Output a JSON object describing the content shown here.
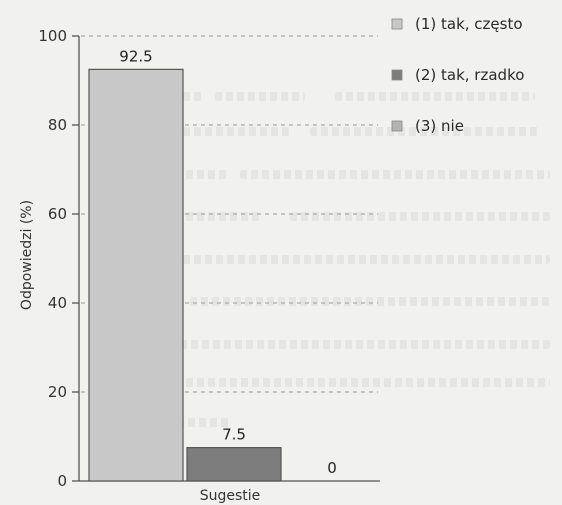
{
  "chart_data": {
    "type": "bar",
    "categories": [
      "Sugestie"
    ],
    "series": [
      {
        "name": "(1) tak, często",
        "values": [
          92.5
        ],
        "color": "#c8c8c8",
        "label": "92.5"
      },
      {
        "name": "(2) tak, rzadko",
        "values": [
          7.5
        ],
        "color": "#7d7d7d",
        "label": "7.5"
      },
      {
        "name": "(3) nie",
        "values": [
          0
        ],
        "color": "#b4b4b4",
        "label": "0"
      }
    ],
    "xlabel": "Sugestie",
    "ylabel": "Odpowiedzi (%)",
    "ylim": [
      0,
      100
    ],
    "yticks": [
      "0",
      "20",
      "40",
      "60",
      "80",
      "100"
    ],
    "grid": true,
    "legend_position": "top-right"
  }
}
